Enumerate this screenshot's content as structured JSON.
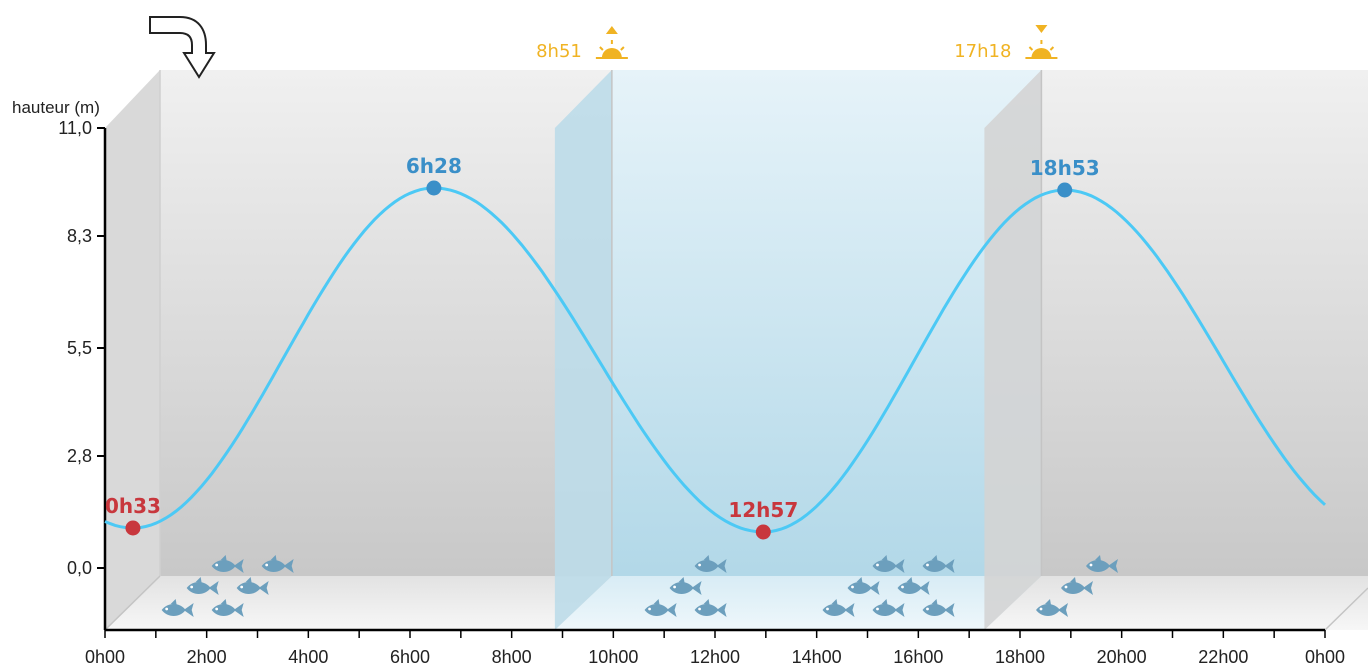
{
  "chart_data": {
    "type": "line",
    "ylabel": "hauteur (m)",
    "y_ticks": [
      "11,0",
      "8,3",
      "5,5",
      "2,8",
      "0,0"
    ],
    "y_tick_values": [
      11.0,
      8.3,
      5.5,
      2.8,
      0.0
    ],
    "ylim": [
      -1.5,
      11.0
    ],
    "x_ticks": [
      "0h00",
      "2h00",
      "4h00",
      "6h00",
      "8h00",
      "10h00",
      "12h00",
      "14h00",
      "16h00",
      "18h00",
      "20h00",
      "22h00",
      "0h00"
    ],
    "xlim_hours": [
      0,
      24
    ],
    "tides": [
      {
        "label": "0h33",
        "hour": 0.55,
        "height": 1.0,
        "kind": "low"
      },
      {
        "label": "6h28",
        "hour": 6.47,
        "height": 9.5,
        "kind": "high"
      },
      {
        "label": "12h57",
        "hour": 12.95,
        "height": 0.9,
        "kind": "low"
      },
      {
        "label": "18h53",
        "hour": 18.88,
        "height": 9.45,
        "kind": "high"
      }
    ],
    "sunrise": {
      "label": "8h51",
      "hour": 8.85
    },
    "sunset": {
      "label": "17h18",
      "hour": 17.3
    },
    "fish_groups": [
      {
        "hour": 2.0,
        "count": 6
      },
      {
        "hour": 11.5,
        "count": 4
      },
      {
        "hour": 15.0,
        "count": 7
      },
      {
        "hour": 19.2,
        "count": 3
      }
    ],
    "grid": false,
    "colors": {
      "curve": "#4cc9f5",
      "high": "#3a8fc8",
      "low": "#c8373d",
      "sun": "#f0b323",
      "day_band": "#cfe7f2",
      "fish": "#6c9fbd"
    }
  },
  "ui": {
    "rewind_icon": "turn-down-arrow-icon",
    "sunrise_icon": "sunrise-icon",
    "sunset_icon": "sunset-icon"
  }
}
